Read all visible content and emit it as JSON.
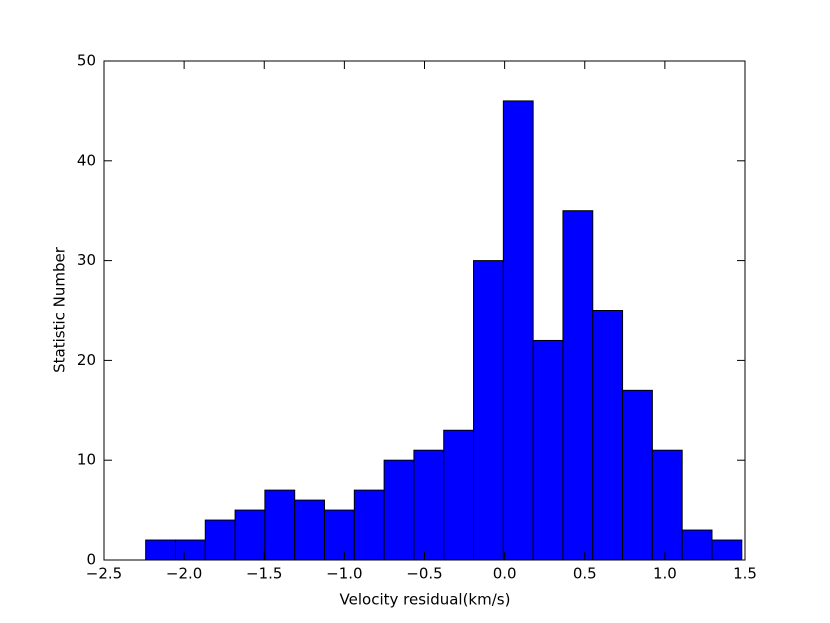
{
  "chart_data": {
    "type": "histogram",
    "xlabel": "Velocity residual(km/s)",
    "ylabel": "Statistic Number",
    "bins": [
      -2.24,
      -2.054,
      -1.868,
      -1.682,
      -1.496,
      -1.31,
      -1.124,
      -0.938,
      -0.752,
      -0.566,
      -0.38,
      -0.194,
      -0.008,
      0.178,
      0.364,
      0.55,
      0.736,
      0.922,
      1.108,
      1.294,
      1.48
    ],
    "values": [
      2,
      2,
      4,
      5,
      7,
      6,
      5,
      7,
      10,
      11,
      13,
      30,
      46,
      22,
      35,
      25,
      17,
      11,
      3,
      2
    ],
    "color": "#0000ff",
    "xlim": [
      -2.5,
      1.5
    ],
    "xticks": [
      {
        "value": -2.5,
        "label": "−2.5"
      },
      {
        "value": -2.0,
        "label": "−2.0"
      },
      {
        "value": -1.5,
        "label": "−1.5"
      },
      {
        "value": -1.0,
        "label": "−1.0"
      },
      {
        "value": -0.5,
        "label": "−0.5"
      },
      {
        "value": 0.0,
        "label": "0.0"
      },
      0.5,
      {
        "value": 1.0,
        "label": "1.0"
      },
      1.5
    ],
    "ylim": [
      0,
      50
    ],
    "yticks": [
      0,
      10,
      20,
      30,
      40,
      50
    ],
    "grid": false
  }
}
